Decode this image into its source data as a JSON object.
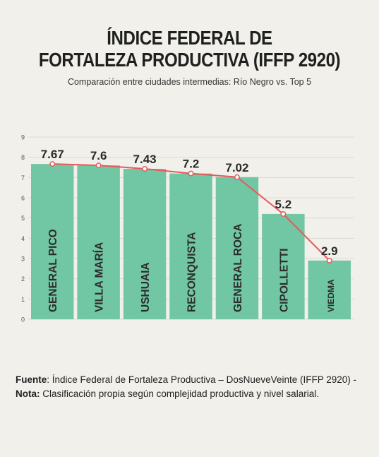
{
  "header": {
    "title_line1": "ÍNDICE FEDERAL DE",
    "title_line2": "FORTALEZA PRODUCTIVA (IFFP 2920)",
    "subtitle": "Comparación entre ciudades intermedias: Río Negro vs. Top 5"
  },
  "chart_data": {
    "type": "bar",
    "categories": [
      "GENERAL PICO",
      "VILLA MARÍA",
      "USHUAIA",
      "RECONQUISTA",
      "GENERAL ROCA",
      "CIPOLLETTI",
      "VIEDMA"
    ],
    "values": [
      7.67,
      7.6,
      7.43,
      7.2,
      7.02,
      5.2,
      2.9
    ],
    "data_labels": [
      "7.67",
      "7.6",
      "7.43",
      "7.2",
      "7.02",
      "5.2",
      "2.9"
    ],
    "ylim": [
      0,
      9
    ],
    "yticks": [
      "0",
      "1",
      "2",
      "3",
      "4",
      "5",
      "6",
      "7",
      "8",
      "9"
    ],
    "grid": true,
    "overlay_line": true,
    "colors": {
      "bar": "#71c6a3",
      "line": "#e9585c",
      "marker_fill": "#ffffff",
      "grid": "#dadad4"
    }
  },
  "footer": {
    "source_label": "Fuente",
    "source_text": ": Índice Federal de Fortaleza Productiva – DosNueveVeinte (IFFP 2920)  -  ",
    "note_label": "Nota:",
    "note_text": " Clasificación propia según complejidad productiva y nivel salarial."
  }
}
